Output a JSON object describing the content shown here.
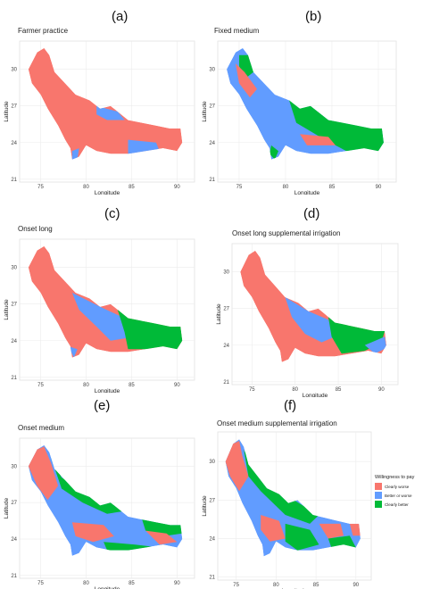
{
  "colors": {
    "clearly_worse": "#F8766D",
    "better_or_worse": "#619CFF",
    "clearly_better": "#00BA38"
  },
  "axes": {
    "xlabel": "Longitude",
    "ylabel": "Latitude",
    "xticks": [
      "75",
      "80",
      "85",
      "90"
    ],
    "yticks": [
      "30",
      "27",
      "24",
      "21"
    ]
  },
  "panels": [
    {
      "letter": "(a)",
      "title": "Farmer practice"
    },
    {
      "letter": "(b)",
      "title": "Fixed medium"
    },
    {
      "letter": "(c)",
      "title": "Onset long"
    },
    {
      "letter": "(d)",
      "title": "Onset long supplemental irrigation"
    },
    {
      "letter": "(e)",
      "title": "Onset medium"
    },
    {
      "letter": "(f)",
      "title": "Onset medium supplemental irrigation"
    }
  ],
  "legend": {
    "title": "Willingness to pay",
    "items": [
      "Clearly worse",
      "Better or worse",
      "Clearly better"
    ]
  }
}
